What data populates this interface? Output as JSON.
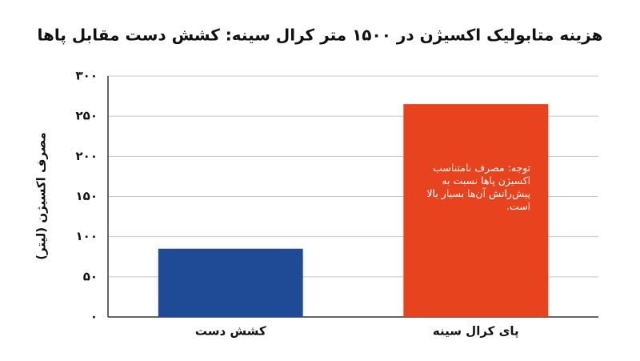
{
  "chart_data": {
    "type": "bar",
    "title": "هزینه متابولیک اکسیژن در ۱۵۰۰ متر کرال سینه: کشش دست مقابل پاها",
    "y_label": "مصرف اکسیژن (لیتر)",
    "categories": [
      "کشش دست",
      "پای کرال سینه"
    ],
    "values": [
      85,
      265
    ],
    "colors": [
      "#1f4b96",
      "#e8431f"
    ],
    "annotation": "توجه: مصرف نامتناسب اکسیژن پاها نسبت به پیش‌رانش آن‌ها بسیار بالا است.",
    "ylim": [
      0,
      300
    ],
    "yticks": [
      {
        "value": 0,
        "label": "۰"
      },
      {
        "value": 50,
        "label": "۵۰"
      },
      {
        "value": 100,
        "label": "۱۰۰"
      },
      {
        "value": 150,
        "label": "۱۵۰"
      },
      {
        "value": 200,
        "label": "۲۰۰"
      },
      {
        "value": 250,
        "label": "۲۵۰"
      },
      {
        "value": 300,
        "label": "۳۰۰"
      }
    ],
    "grid": true
  }
}
